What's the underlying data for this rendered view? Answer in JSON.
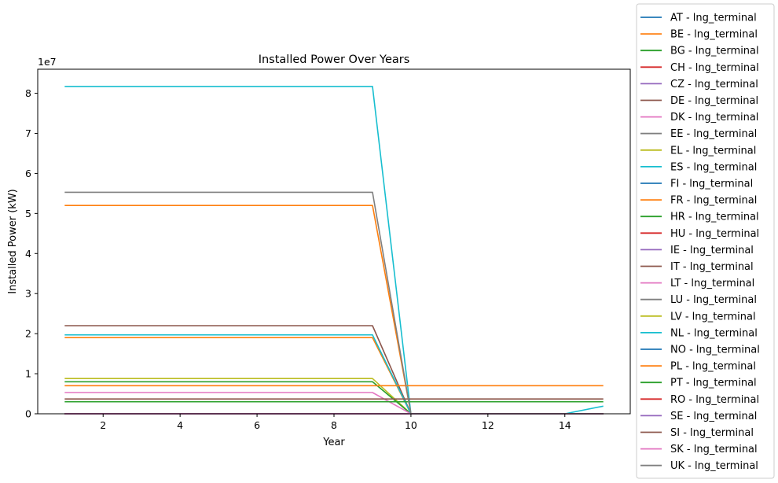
{
  "chart_data": {
    "type": "line",
    "title": "Installed Power Over Years",
    "xlabel": "Year",
    "ylabel": "Installed Power (kW)",
    "y_offset_text": "1e7",
    "xlim": [
      0.3,
      15.7
    ],
    "ylim": [
      0,
      86000000
    ],
    "x_ticks": [
      2,
      4,
      6,
      8,
      10,
      12,
      14
    ],
    "y_ticks": [
      0,
      10000000,
      20000000,
      30000000,
      40000000,
      50000000,
      60000000,
      70000000,
      80000000
    ],
    "y_tick_labels": [
      "0",
      "1",
      "2",
      "3",
      "4",
      "5",
      "6",
      "7",
      "8"
    ],
    "grid": false,
    "legend_position": "right, outside",
    "x": [
      1,
      2,
      3,
      4,
      5,
      6,
      7,
      8,
      9,
      10,
      11,
      12,
      13,
      14,
      15
    ],
    "series": [
      {
        "name": "AT - lng_terminal",
        "color": "#1f77b4",
        "values": [
          0,
          0,
          0,
          0,
          0,
          0,
          0,
          0,
          0,
          0,
          0,
          0,
          0,
          0,
          0
        ]
      },
      {
        "name": "BE - lng_terminal",
        "color": "#ff7f0e",
        "values": [
          19000000,
          19000000,
          19000000,
          19000000,
          19000000,
          19000000,
          19000000,
          19000000,
          19000000,
          0,
          0,
          0,
          0,
          0,
          0
        ]
      },
      {
        "name": "BG - lng_terminal",
        "color": "#2ca02c",
        "values": [
          0,
          0,
          0,
          0,
          0,
          0,
          0,
          0,
          0,
          0,
          0,
          0,
          0,
          0,
          0
        ]
      },
      {
        "name": "CH - lng_terminal",
        "color": "#d62728",
        "values": [
          0,
          0,
          0,
          0,
          0,
          0,
          0,
          0,
          0,
          0,
          0,
          0,
          0,
          0,
          0
        ]
      },
      {
        "name": "CZ - lng_terminal",
        "color": "#9467bd",
        "values": [
          0,
          0,
          0,
          0,
          0,
          0,
          0,
          0,
          0,
          0,
          0,
          0,
          0,
          0,
          0
        ]
      },
      {
        "name": "DE - lng_terminal",
        "color": "#8c564b",
        "values": [
          0,
          0,
          0,
          0,
          0,
          0,
          0,
          0,
          0,
          0,
          0,
          0,
          0,
          0,
          0
        ]
      },
      {
        "name": "DK - lng_terminal",
        "color": "#e377c2",
        "values": [
          0,
          0,
          0,
          0,
          0,
          0,
          0,
          0,
          0,
          0,
          0,
          0,
          0,
          0,
          0
        ]
      },
      {
        "name": "EE - lng_terminal",
        "color": "#7f7f7f",
        "values": [
          0,
          0,
          0,
          0,
          0,
          0,
          0,
          0,
          0,
          0,
          0,
          0,
          0,
          0,
          0
        ]
      },
      {
        "name": "EL - lng_terminal",
        "color": "#bcbd22",
        "values": [
          8800000,
          8800000,
          8800000,
          8800000,
          8800000,
          8800000,
          8800000,
          8800000,
          8800000,
          0,
          0,
          0,
          0,
          0,
          0
        ]
      },
      {
        "name": "ES - lng_terminal",
        "color": "#17becf",
        "values": [
          81700000,
          81700000,
          81700000,
          81700000,
          81700000,
          81700000,
          81700000,
          81700000,
          81700000,
          0,
          0,
          0,
          0,
          0,
          0
        ]
      },
      {
        "name": "FI - lng_terminal",
        "color": "#1f77b4",
        "values": [
          0,
          0,
          0,
          0,
          0,
          0,
          0,
          0,
          0,
          0,
          0,
          0,
          0,
          0,
          0
        ]
      },
      {
        "name": "FR - lng_terminal",
        "color": "#ff7f0e",
        "values": [
          52000000,
          52000000,
          52000000,
          52000000,
          52000000,
          52000000,
          52000000,
          52000000,
          52000000,
          0,
          0,
          0,
          0,
          0,
          0
        ]
      },
      {
        "name": "HR - lng_terminal",
        "color": "#2ca02c",
        "values": [
          8000000,
          8000000,
          8000000,
          8000000,
          8000000,
          8000000,
          8000000,
          8000000,
          8000000,
          0,
          0,
          0,
          0,
          0,
          0
        ]
      },
      {
        "name": "HU - lng_terminal",
        "color": "#d62728",
        "values": [
          0,
          0,
          0,
          0,
          0,
          0,
          0,
          0,
          0,
          0,
          0,
          0,
          0,
          0,
          0
        ]
      },
      {
        "name": "IE - lng_terminal",
        "color": "#9467bd",
        "values": [
          0,
          0,
          0,
          0,
          0,
          0,
          0,
          0,
          0,
          0,
          0,
          0,
          0,
          0,
          0
        ]
      },
      {
        "name": "IT - lng_terminal",
        "color": "#8c564b",
        "values": [
          22000000,
          22000000,
          22000000,
          22000000,
          22000000,
          22000000,
          22000000,
          22000000,
          22000000,
          0,
          0,
          0,
          0,
          0,
          0
        ]
      },
      {
        "name": "LT - lng_terminal",
        "color": "#e377c2",
        "values": [
          5300000,
          5300000,
          5300000,
          5300000,
          5300000,
          5300000,
          5300000,
          5300000,
          5300000,
          0,
          0,
          0,
          0,
          0,
          0
        ]
      },
      {
        "name": "LU - lng_terminal",
        "color": "#7f7f7f",
        "values": [
          0,
          0,
          0,
          0,
          0,
          0,
          0,
          0,
          0,
          0,
          0,
          0,
          0,
          0,
          0
        ]
      },
      {
        "name": "LV - lng_terminal",
        "color": "#bcbd22",
        "values": [
          0,
          0,
          0,
          0,
          0,
          0,
          0,
          0,
          0,
          0,
          0,
          0,
          0,
          0,
          0
        ]
      },
      {
        "name": "NL - lng_terminal",
        "color": "#17becf",
        "values": [
          19700000,
          19700000,
          19700000,
          19700000,
          19700000,
          19700000,
          19700000,
          19700000,
          19700000,
          0,
          0,
          0,
          0,
          0,
          1900000
        ]
      },
      {
        "name": "NO - lng_terminal",
        "color": "#1f77b4",
        "values": [
          0,
          0,
          0,
          0,
          0,
          0,
          0,
          0,
          0,
          0,
          0,
          0,
          0,
          0,
          0
        ]
      },
      {
        "name": "PL - lng_terminal",
        "color": "#ff7f0e",
        "values": [
          7000000,
          7000000,
          7000000,
          7000000,
          7000000,
          7000000,
          7000000,
          7000000,
          7000000,
          7000000,
          7000000,
          7000000,
          7000000,
          7000000,
          7000000
        ]
      },
      {
        "name": "PT - lng_terminal",
        "color": "#2ca02c",
        "values": [
          3000000,
          3000000,
          3000000,
          3000000,
          3000000,
          3000000,
          3000000,
          3000000,
          3000000,
          3000000,
          3000000,
          3000000,
          3000000,
          3000000,
          3000000
        ]
      },
      {
        "name": "RO - lng_terminal",
        "color": "#d62728",
        "values": [
          0,
          0,
          0,
          0,
          0,
          0,
          0,
          0,
          0,
          0,
          0,
          0,
          0,
          0,
          0
        ]
      },
      {
        "name": "SE - lng_terminal",
        "color": "#9467bd",
        "values": [
          0,
          0,
          0,
          0,
          0,
          0,
          0,
          0,
          0,
          0,
          0,
          0,
          0,
          0,
          0
        ]
      },
      {
        "name": "SI - lng_terminal",
        "color": "#8c564b",
        "values": [
          3700000,
          3700000,
          3700000,
          3700000,
          3700000,
          3700000,
          3700000,
          3700000,
          3700000,
          3700000,
          3700000,
          3700000,
          3700000,
          3700000,
          3700000
        ]
      },
      {
        "name": "SK - lng_terminal",
        "color": "#e377c2",
        "values": [
          0,
          0,
          0,
          0,
          0,
          0,
          0,
          0,
          0,
          0,
          0,
          0,
          0,
          0,
          0
        ]
      },
      {
        "name": "UK - lng_terminal",
        "color": "#7f7f7f",
        "values": [
          55300000,
          55300000,
          55300000,
          55300000,
          55300000,
          55300000,
          55300000,
          55300000,
          55300000,
          0,
          0,
          0,
          0,
          0,
          0
        ]
      }
    ]
  }
}
